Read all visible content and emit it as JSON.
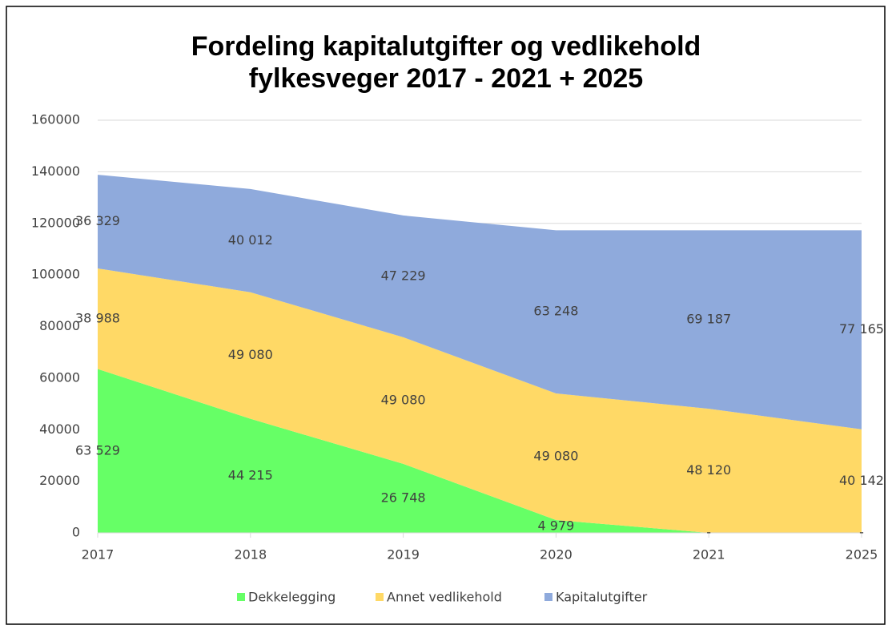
{
  "chart_data": {
    "type": "stacked_area",
    "title": [
      "Fordeling kapitalutgifter og vedlikehold",
      "fylkesveger 2017 - 2021 + 2025"
    ],
    "categories": [
      "2017",
      "2018",
      "2019",
      "2020",
      "2021",
      "2025"
    ],
    "series": [
      {
        "name": "Dekkelegging",
        "color": "#66ff66",
        "values": [
          63529,
          44215,
          26748,
          4979,
          0,
          0
        ],
        "value_labels": [
          "63 529",
          "44 215",
          "26 748",
          "4 979",
          "-",
          "-"
        ]
      },
      {
        "name": "Annet vedlikehold",
        "color": "#ffd966",
        "values": [
          38988,
          49080,
          49080,
          49080,
          48120,
          40142
        ],
        "value_labels": [
          "38 988",
          "49 080",
          "49 080",
          "49 080",
          "48 120",
          "40 142"
        ]
      },
      {
        "name": "Kapitalutgifter",
        "color": "#8faadc",
        "values": [
          36329,
          40012,
          47229,
          63248,
          69187,
          77165
        ],
        "value_labels": [
          "36 329",
          "40 012",
          "47 229",
          "63 248",
          "69 187",
          "77 165"
        ]
      }
    ],
    "ylim": [
      0,
      160000
    ],
    "yticks": [
      0,
      20000,
      40000,
      60000,
      80000,
      100000,
      120000,
      140000,
      160000
    ],
    "grid": true,
    "legend": "bottom"
  }
}
